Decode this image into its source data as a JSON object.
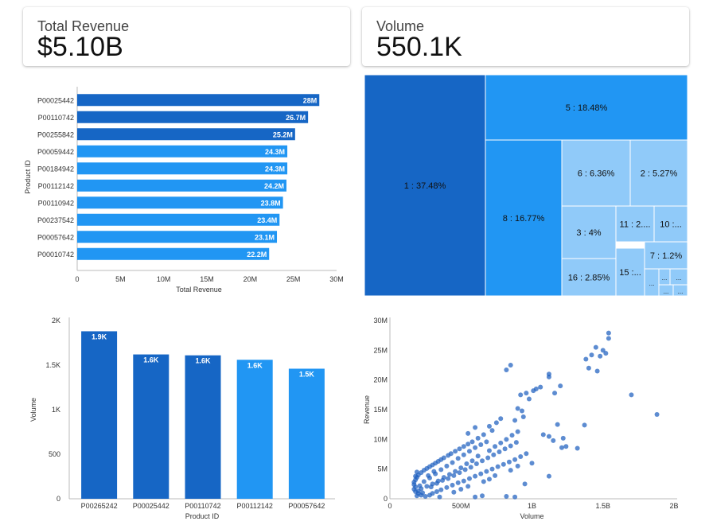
{
  "kpis": {
    "revenue": {
      "label": "Total Revenue",
      "value": "$5.10B"
    },
    "volume": {
      "label": "Volume",
      "value": "550.1K"
    }
  },
  "colors": {
    "dark": "#1666c5",
    "light": "#2196f3",
    "tile1": "#1666c5",
    "tile2": "#2196f3",
    "tile3": "#90caf9",
    "scatter": "#1f5fbf"
  },
  "chart_data": [
    {
      "type": "bar",
      "orientation": "horizontal",
      "title": "",
      "xlabel": "Total Revenue",
      "ylabel": "Product ID",
      "categories": [
        "P00025442",
        "P00110742",
        "P00255842",
        "P00059442",
        "P00184942",
        "P00112142",
        "P00110942",
        "P00237542",
        "P00057642",
        "P00010742"
      ],
      "values": [
        28000000,
        26700000,
        25200000,
        24300000,
        24300000,
        24200000,
        23800000,
        23400000,
        23100000,
        22200000
      ],
      "data_labels": [
        "28M",
        "26.7M",
        "25.2M",
        "24.3M",
        "24.3M",
        "24.2M",
        "23.8M",
        "23.4M",
        "23.1M",
        "22.2M"
      ],
      "bar_shade": [
        "dark",
        "dark",
        "dark",
        "light",
        "light",
        "light",
        "light",
        "light",
        "light",
        "light"
      ],
      "xlim": [
        0,
        30000000
      ],
      "xticks": [
        "0",
        "5M",
        "10M",
        "15M",
        "20M",
        "25M",
        "30M"
      ],
      "grid": false
    },
    {
      "type": "treemap",
      "title": "",
      "tiles": [
        {
          "label": "1 : 37.48%",
          "share": 37.48,
          "shade": "tile1"
        },
        {
          "label": "5 : 18.48%",
          "share": 18.48,
          "shade": "tile2"
        },
        {
          "label": "8 : 16.77%",
          "share": 16.77,
          "shade": "tile2"
        },
        {
          "label": "6 : 6.36%",
          "share": 6.36,
          "shade": "tile3"
        },
        {
          "label": "2 : 5.27%",
          "share": 5.27,
          "shade": "tile3"
        },
        {
          "label": "3 : 4%",
          "share": 4.0,
          "shade": "tile3"
        },
        {
          "label": "11 : 2....",
          "share": 2.4,
          "shade": "tile3"
        },
        {
          "label": "10 :...",
          "share": 2.2,
          "shade": "tile3"
        },
        {
          "label": "16 : 2.85%",
          "share": 2.85,
          "shade": "tile3"
        },
        {
          "label": "15 :...",
          "share": 1.6,
          "shade": "tile3"
        },
        {
          "label": "7 : 1.2%",
          "share": 1.2,
          "shade": "tile3"
        },
        {
          "label": "...",
          "share": 0.5,
          "shade": "tile3"
        },
        {
          "label": "...",
          "share": 0.5,
          "shade": "tile3"
        },
        {
          "label": "...",
          "share": 0.3,
          "shade": "tile3"
        },
        {
          "label": "...",
          "share": 0.3,
          "shade": "tile3"
        },
        {
          "label": "...",
          "share": 0.3,
          "shade": "tile3"
        }
      ]
    },
    {
      "type": "bar",
      "orientation": "vertical",
      "title": "",
      "xlabel": "Product ID",
      "ylabel": "Volume",
      "categories": [
        "P00265242",
        "P00025442",
        "P00110742",
        "P00112142",
        "P00057642"
      ],
      "values": [
        1880,
        1620,
        1610,
        1560,
        1460
      ],
      "data_labels": [
        "1.9K",
        "1.6K",
        "1.6K",
        "1.6K",
        "1.5K"
      ],
      "bar_shade": [
        "dark",
        "dark",
        "dark",
        "light",
        "light"
      ],
      "ylim": [
        0,
        2000
      ],
      "yticks": [
        "0",
        "500",
        "1K",
        "1.5K",
        "2K"
      ],
      "grid": false
    },
    {
      "type": "scatter",
      "title": "",
      "xlabel": "Volume",
      "ylabel": "Revenue",
      "xlim": [
        0,
        2000000000
      ],
      "ylim": [
        0,
        30000000
      ],
      "xticks": [
        "0",
        "500M",
        "1B",
        "1.5B",
        "2B"
      ],
      "yticks": [
        "0",
        "5M",
        "10M",
        "15M",
        "20M",
        "25M",
        "30M"
      ],
      "points": [
        [
          1450000000.0,
          25500000.0
        ],
        [
          1540000000.0,
          27900000.0
        ],
        [
          1540000000.0,
          27000000.0
        ],
        [
          1500000000.0,
          25000000.0
        ],
        [
          1480000000.0,
          24000000.0
        ],
        [
          1420000000.0,
          24200000.0
        ],
        [
          1380000000.0,
          23500000.0
        ],
        [
          1400000000.0,
          22000000.0
        ],
        [
          1460000000.0,
          21500000.0
        ],
        [
          1520000000.0,
          24500000.0
        ],
        [
          1120000000.0,
          21000000.0
        ],
        [
          1120000000.0,
          20500000.0
        ],
        [
          1200000000.0,
          19000000.0
        ],
        [
          1060000000.0,
          18800000.0
        ],
        [
          1030000000.0,
          18500000.0
        ],
        [
          1010000000.0,
          18200000.0
        ],
        [
          1160000000.0,
          17800000.0
        ],
        [
          920000000.0,
          17500000.0
        ],
        [
          960000000.0,
          17800000.0
        ],
        [
          980000000.0,
          16800000.0
        ],
        [
          820000000.0,
          21700000.0
        ],
        [
          850000000.0,
          22500000.0
        ],
        [
          900000000.0,
          15200000.0
        ],
        [
          930000000.0,
          14800000.0
        ],
        [
          940000000.0,
          13800000.0
        ],
        [
          880000000.0,
          13200000.0
        ],
        [
          1180000000.0,
          12500000.0
        ],
        [
          1080000000.0,
          10800000.0
        ],
        [
          1120000000.0,
          10500000.0
        ],
        [
          1220000000.0,
          10200000.0
        ],
        [
          1150000000.0,
          9800000.0
        ],
        [
          1320000000.0,
          8500000.0
        ],
        [
          1240000000.0,
          8800000.0
        ],
        [
          1210000000.0,
          8600000.0
        ],
        [
          1880000000.0,
          14200000.0
        ],
        [
          1700000000.0,
          17500000.0
        ],
        [
          1370000000.0,
          12400000.0
        ],
        [
          1120000000.0,
          3800000.0
        ],
        [
          950000000.0,
          2500000.0
        ],
        [
          880000000.0,
          300000.0
        ],
        [
          820000000.0,
          400000.0
        ],
        [
          650000000.0,
          500000.0
        ],
        [
          600000000.0,
          300000.0
        ],
        [
          780000000.0,
          13500000.0
        ],
        [
          750000000.0,
          12800000.0
        ],
        [
          700000000.0,
          12200000.0
        ],
        [
          720000000.0,
          11500000.0
        ],
        [
          660000000.0,
          10800000.0
        ],
        [
          620000000.0,
          10200000.0
        ],
        [
          580000000.0,
          9600000.0
        ],
        [
          550000000.0,
          9200000.0
        ],
        [
          520000000.0,
          8800000.0
        ],
        [
          490000000.0,
          8400000.0
        ],
        [
          460000000.0,
          8000000.0
        ],
        [
          430000000.0,
          7600000.0
        ],
        [
          410000000.0,
          7300000.0
        ],
        [
          380000000.0,
          6900000.0
        ],
        [
          360000000.0,
          6600000.0
        ],
        [
          340000000.0,
          6300000.0
        ],
        [
          320000000.0,
          6000000.0
        ],
        [
          300000000.0,
          5700000.0
        ],
        [
          280000000.0,
          5400000.0
        ],
        [
          260000000.0,
          5100000.0
        ],
        [
          240000000.0,
          4800000.0
        ],
        [
          220000000.0,
          4400000.0
        ],
        [
          200000000.0,
          4000000.0
        ],
        [
          190000000.0,
          3600000.0
        ],
        [
          180000000.0,
          3200000.0
        ],
        [
          170000000.0,
          2800000.0
        ],
        [
          170000000.0,
          2400000.0
        ],
        [
          180000000.0,
          2000000.0
        ],
        [
          170000000.0,
          1600000.0
        ],
        [
          180000000.0,
          1200000.0
        ],
        [
          200000000.0,
          900000.0
        ],
        [
          220000000.0,
          600000.0
        ],
        [
          250000000.0,
          400000.0
        ],
        [
          280000000.0,
          600000.0
        ],
        [
          300000000.0,
          900000.0
        ],
        [
          330000000.0,
          1200000.0
        ],
        [
          360000000.0,
          1500000.0
        ],
        [
          400000000.0,
          1900000.0
        ],
        [
          440000000.0,
          2300000.0
        ],
        [
          480000000.0,
          2700000.0
        ],
        [
          520000000.0,
          3000000.0
        ],
        [
          560000000.0,
          3400000.0
        ],
        [
          600000000.0,
          3800000.0
        ],
        [
          640000000.0,
          4200000.0
        ],
        [
          680000000.0,
          4600000.0
        ],
        [
          720000000.0,
          5000000.0
        ],
        [
          760000000.0,
          5400000.0
        ],
        [
          800000000.0,
          5800000.0
        ],
        [
          840000000.0,
          6200000.0
        ],
        [
          880000000.0,
          6600000.0
        ],
        [
          920000000.0,
          7100000.0
        ],
        [
          960000000.0,
          7600000.0
        ],
        [
          620000000.0,
          7200000.0
        ],
        [
          580000000.0,
          6400000.0
        ],
        [
          540000000.0,
          5900000.0
        ],
        [
          500000000.0,
          5200000.0
        ],
        [
          460000000.0,
          4600000.0
        ],
        [
          420000000.0,
          4100000.0
        ],
        [
          380000000.0,
          3600000.0
        ],
        [
          340000000.0,
          3000000.0
        ],
        [
          300000000.0,
          2500000.0
        ],
        [
          260000000.0,
          2100000.0
        ],
        [
          220000000.0,
          1700000.0
        ],
        [
          200000000.0,
          1300000.0
        ],
        [
          240000000.0,
          2900000.0
        ],
        [
          280000000.0,
          3500000.0
        ],
        [
          320000000.0,
          4200000.0
        ],
        [
          360000000.0,
          4900000.0
        ],
        [
          400000000.0,
          5500000.0
        ],
        [
          440000000.0,
          6100000.0
        ],
        [
          480000000.0,
          6800000.0
        ],
        [
          520000000.0,
          7400000.0
        ],
        [
          560000000.0,
          8000000.0
        ],
        [
          600000000.0,
          8600000.0
        ],
        [
          640000000.0,
          9100000.0
        ],
        [
          680000000.0,
          9600000.0
        ],
        [
          700000000.0,
          8100000.0
        ],
        [
          740000000.0,
          8800000.0
        ],
        [
          780000000.0,
          9400000.0
        ],
        [
          820000000.0,
          10000000.0
        ],
        [
          860000000.0,
          10700000.0
        ],
        [
          900000000.0,
          11300000.0
        ],
        [
          190000000.0,
          4500000.0
        ],
        [
          180000000.0,
          3800000.0
        ],
        [
          210000000.0,
          2200000.0
        ],
        [
          230000000.0,
          1000000.0
        ],
        [
          190000000.0,
          500000.0
        ],
        [
          350000000.0,
          300000.0
        ],
        [
          450000000.0,
          1100000.0
        ],
        [
          500000000.0,
          1600000.0
        ],
        [
          550000000.0,
          2100000.0
        ],
        [
          660000000.0,
          2900000.0
        ],
        [
          700000000.0,
          3300000.0
        ],
        [
          740000000.0,
          3900000.0
        ],
        [
          850000000.0,
          4800000.0
        ],
        [
          900000000.0,
          5500000.0
        ],
        [
          1000000000.0,
          6000000.0
        ],
        [
          270000000.0,
          3900000.0
        ],
        [
          310000000.0,
          4600000.0
        ],
        [
          290000000.0,
          2000000.0
        ],
        [
          330000000.0,
          2600000.0
        ],
        [
          370000000.0,
          3100000.0
        ],
        [
          410000000.0,
          3400000.0
        ],
        [
          450000000.0,
          3900000.0
        ],
        [
          490000000.0,
          4400000.0
        ],
        [
          530000000.0,
          4900000.0
        ],
        [
          570000000.0,
          5300000.0
        ],
        [
          610000000.0,
          5900000.0
        ],
        [
          650000000.0,
          6400000.0
        ],
        [
          690000000.0,
          6900000.0
        ],
        [
          730000000.0,
          7400000.0
        ],
        [
          770000000.0,
          7900000.0
        ],
        [
          810000000.0,
          8400000.0
        ],
        [
          850000000.0,
          8900000.0
        ],
        [
          890000000.0,
          9500000.0
        ],
        [
          600000000.0,
          12000000.0
        ],
        [
          550000000.0,
          11000000.0
        ]
      ],
      "grid": false
    }
  ]
}
